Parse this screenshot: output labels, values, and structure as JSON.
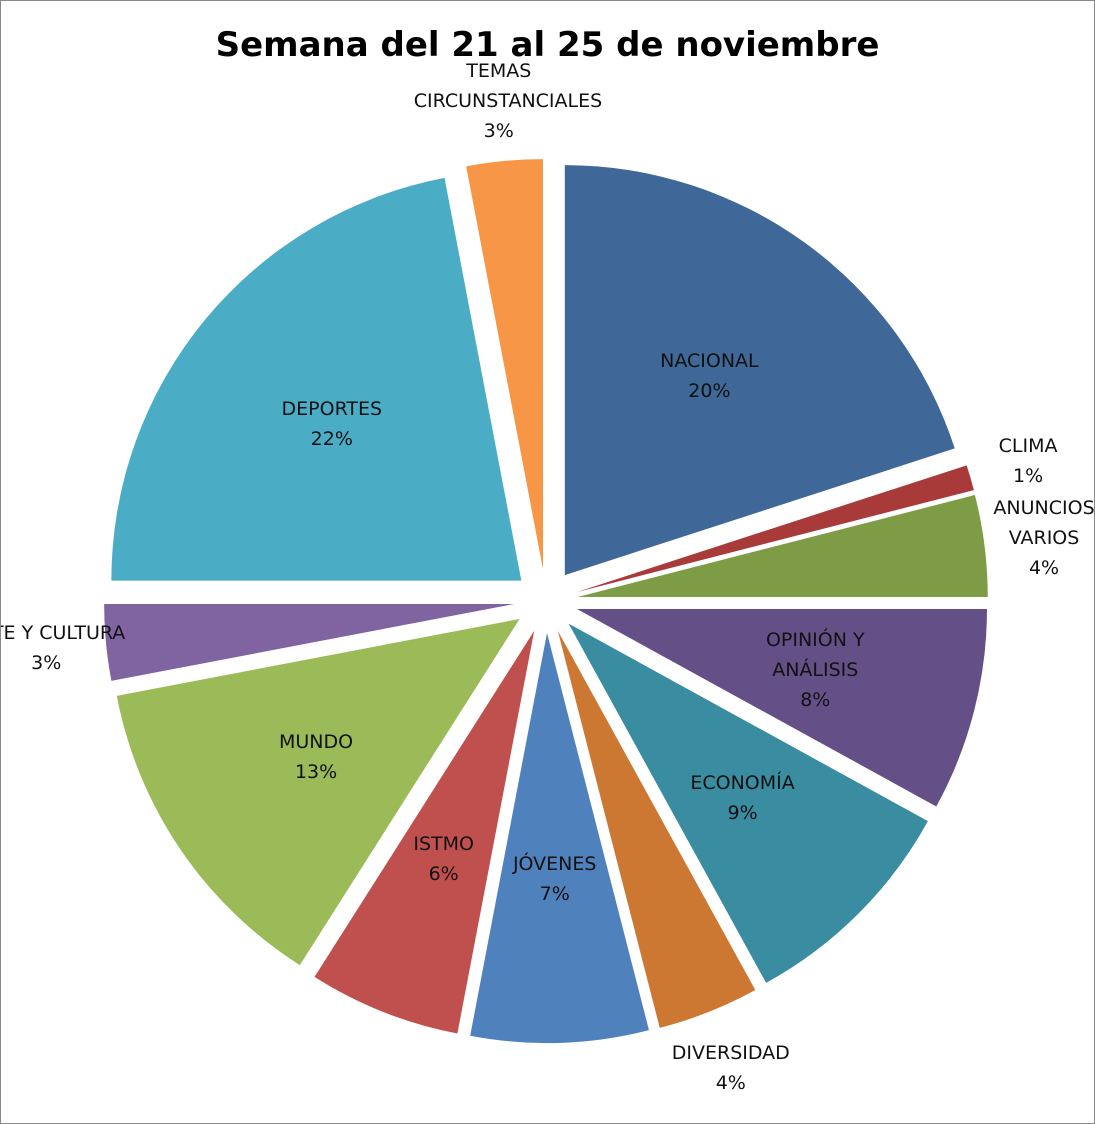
{
  "chart_data": {
    "type": "pie",
    "title": "Semana del 21 al 25 de noviembre",
    "categories": [
      "NACIONAL",
      "CLIMA",
      "ANUNCIOS VARIOS",
      "OPINIÓN Y ANÁLISIS",
      "ECONOMÍA",
      "DIVERSIDAD",
      "JÓVENES",
      "ISTMO",
      "MUNDO",
      "ARTE Y CULTURA",
      "DEPORTES",
      "TEMAS CIRCUNSTANCIALES"
    ],
    "values": [
      20,
      1,
      4,
      8,
      9,
      4,
      7,
      6,
      13,
      3,
      22,
      3
    ],
    "value_labels": [
      "20%",
      "1%",
      "4%",
      "8%",
      "9%",
      "4%",
      "7%",
      "6%",
      "13%",
      "3%",
      "22%",
      "3%"
    ],
    "colors": [
      "#3f6797",
      "#a83a3a",
      "#7e9b45",
      "#654f87",
      "#3a8ca1",
      "#cc7833",
      "#4f81bd",
      "#c0504d",
      "#9bbb59",
      "#8064a2",
      "#4bacc6",
      "#f79646"
    ]
  }
}
